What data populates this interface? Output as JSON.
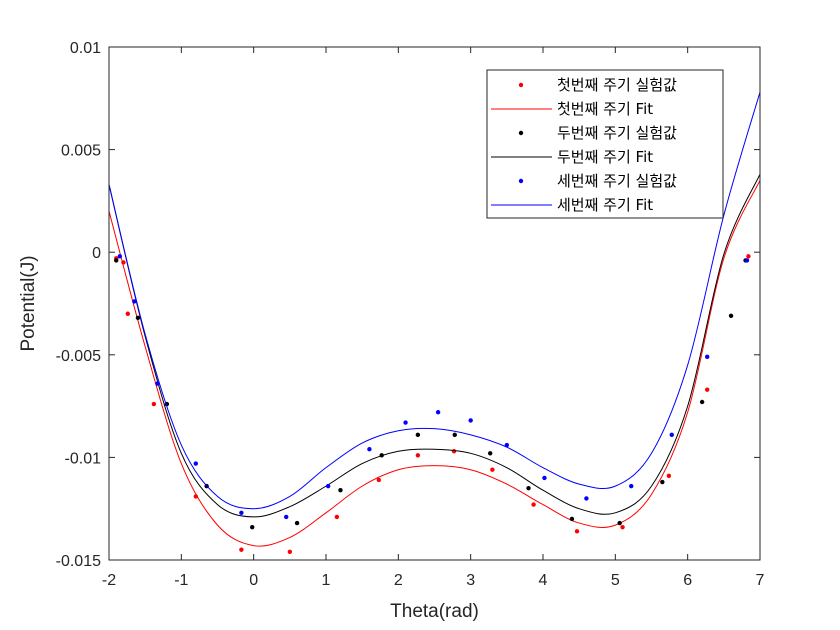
{
  "chart_data": {
    "type": "scatter",
    "title": "",
    "xlabel": "Theta(rad)",
    "ylabel": "Potential(J)",
    "xlim": [
      -2,
      7
    ],
    "ylim": [
      -0.015,
      0.01
    ],
    "xticks": [
      "-2",
      "-1",
      "0",
      "1",
      "2",
      "3",
      "4",
      "5",
      "6",
      "7"
    ],
    "yticks": [
      "-0.015",
      "-0.01",
      "-0.005",
      "0",
      "0.005",
      "0.01"
    ],
    "grid": false,
    "legend_position": "top-right",
    "series": [
      {
        "name": "첫번째 주기 실험값",
        "kind": "points",
        "color": "#ff0000",
        "x": [
          -1.9,
          -1.8,
          -1.74,
          -1.38,
          -0.8,
          -0.17,
          0.5,
          1.15,
          1.73,
          2.27,
          2.77,
          3.3,
          3.87,
          4.47,
          5.1,
          5.74,
          6.27,
          6.84
        ],
        "y": [
          -0.0003,
          -0.0005,
          -0.003,
          -0.0074,
          -0.0119,
          -0.0145,
          -0.0146,
          -0.0129,
          -0.0111,
          -0.0099,
          -0.0097,
          -0.0106,
          -0.0123,
          -0.0136,
          -0.0134,
          -0.0109,
          -0.0067,
          -0.0002
        ]
      },
      {
        "name": "첫번째 주기 Fit",
        "kind": "line",
        "color": "#ff0000",
        "x": [
          -2,
          -1.5,
          -1,
          -0.5,
          0,
          0.5,
          1,
          1.5,
          2,
          2.5,
          3,
          3.5,
          4,
          4.5,
          5,
          5.5,
          6,
          6.5,
          7
        ],
        "y": [
          0.002,
          -0.0046,
          -0.0103,
          -0.0133,
          -0.0143,
          -0.0139,
          -0.0127,
          -0.0114,
          -0.0106,
          -0.0104,
          -0.0106,
          -0.0113,
          -0.0123,
          -0.0132,
          -0.0133,
          -0.0118,
          -0.0078,
          -0.0003,
          0.0035
        ]
      },
      {
        "name": "두번째 주기 실험값",
        "kind": "points",
        "color": "#000000",
        "x": [
          -1.9,
          -1.6,
          -1.2,
          -0.65,
          -0.02,
          0.6,
          1.2,
          1.77,
          2.27,
          2.78,
          3.27,
          3.8,
          4.4,
          5.06,
          5.65,
          6.2,
          6.6,
          6.8
        ],
        "y": [
          -0.0004,
          -0.0032,
          -0.0074,
          -0.0114,
          -0.0134,
          -0.0132,
          -0.0116,
          -0.0099,
          -0.0089,
          -0.0089,
          -0.0098,
          -0.0115,
          -0.013,
          -0.0132,
          -0.0112,
          -0.0073,
          -0.0031,
          -0.0004
        ]
      },
      {
        "name": "두번째 주기 Fit",
        "kind": "line",
        "color": "#000000",
        "x": [
          -2,
          -1.5,
          -1,
          -0.5,
          0,
          0.5,
          1,
          1.5,
          2,
          2.5,
          3,
          3.5,
          4,
          4.5,
          5,
          5.5,
          6,
          6.5,
          7
        ],
        "y": [
          0.0033,
          -0.0041,
          -0.0098,
          -0.0123,
          -0.0129,
          -0.0124,
          -0.0114,
          -0.0103,
          -0.0097,
          -0.0096,
          -0.0098,
          -0.0105,
          -0.0116,
          -0.0125,
          -0.0127,
          -0.0114,
          -0.0075,
          -0.0001,
          0.0038
        ]
      },
      {
        "name": "세번째 주기 실험값",
        "kind": "points",
        "color": "#0000ff",
        "x": [
          -1.85,
          -1.65,
          -1.33,
          -0.8,
          -0.17,
          0.45,
          1.03,
          1.6,
          2.1,
          2.55,
          3.0,
          3.5,
          4.02,
          4.6,
          5.22,
          5.78,
          6.27,
          6.82
        ],
        "y": [
          -0.0002,
          -0.0024,
          -0.0064,
          -0.0103,
          -0.0127,
          -0.0129,
          -0.0114,
          -0.0096,
          -0.0083,
          -0.0078,
          -0.0082,
          -0.0094,
          -0.011,
          -0.012,
          -0.0114,
          -0.0089,
          -0.0051,
          -0.0004
        ]
      },
      {
        "name": "세번째 주기 Fit",
        "kind": "line",
        "color": "#0000ff",
        "x": [
          -2,
          -1.5,
          -1,
          -0.5,
          0,
          0.5,
          1,
          1.5,
          2,
          2.5,
          3,
          3.5,
          4,
          4.5,
          5,
          5.5,
          6,
          6.5,
          7
        ],
        "y": [
          0.0033,
          -0.004,
          -0.0094,
          -0.0119,
          -0.0125,
          -0.0119,
          -0.0105,
          -0.0093,
          -0.0087,
          -0.0086,
          -0.0089,
          -0.0095,
          -0.0105,
          -0.0113,
          -0.0114,
          -0.0098,
          -0.0055,
          0.0018,
          0.0078
        ]
      }
    ]
  }
}
